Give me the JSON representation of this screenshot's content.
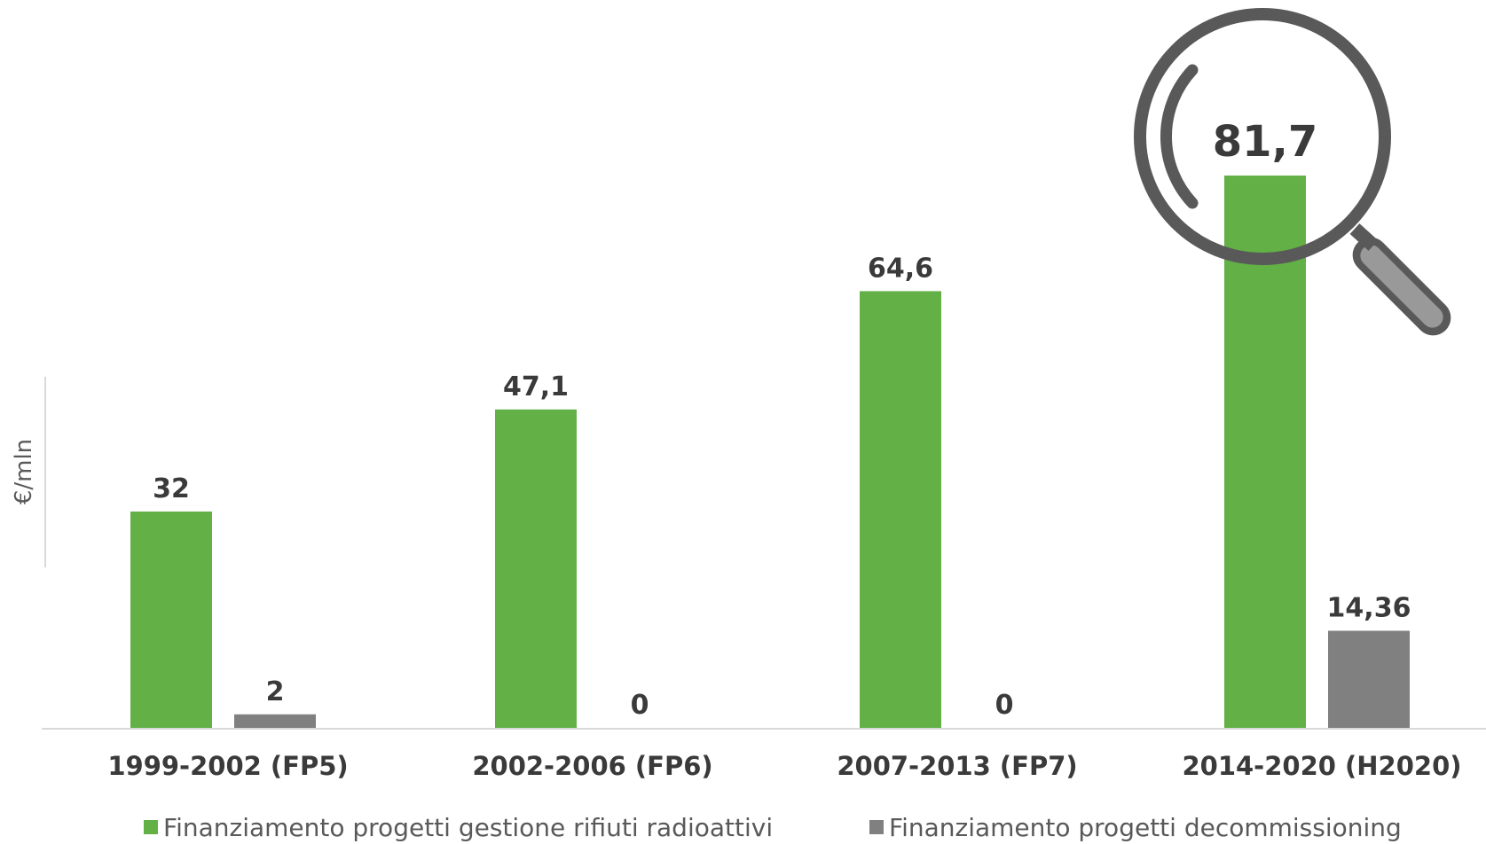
{
  "chart_data": {
    "type": "bar",
    "categories": [
      "1999-2002 (FP5)",
      "2002-2006 (FP6)",
      "2007-2013 (FP7)",
      "2014-2020 (H2020)"
    ],
    "series": [
      {
        "name": "Finanziamento progetti gestione rifiuti radioattivi",
        "values": [
          32,
          47.1,
          64.6,
          81.7
        ],
        "labels": [
          "32",
          "47,1",
          "64,6",
          "81,7"
        ],
        "color": "#62b046"
      },
      {
        "name": "Finanziamento progetti decommissioning",
        "values": [
          2,
          0,
          0,
          14.36
        ],
        "labels": [
          "2",
          "0",
          "0",
          "14,36"
        ],
        "color": "#808080"
      }
    ],
    "ylabel": "€/mln",
    "xlabel": "",
    "ylim": [
      0,
      85
    ],
    "grid": false,
    "legend": "bottom",
    "highlight": {
      "category_index": 3,
      "series_index": 0,
      "icon": "magnifier-icon"
    },
    "colors": {
      "axis": "#d9d9d9",
      "label": "#3a3a3a",
      "magnifier": "#595959",
      "magnifier_handle": "#999999"
    }
  }
}
